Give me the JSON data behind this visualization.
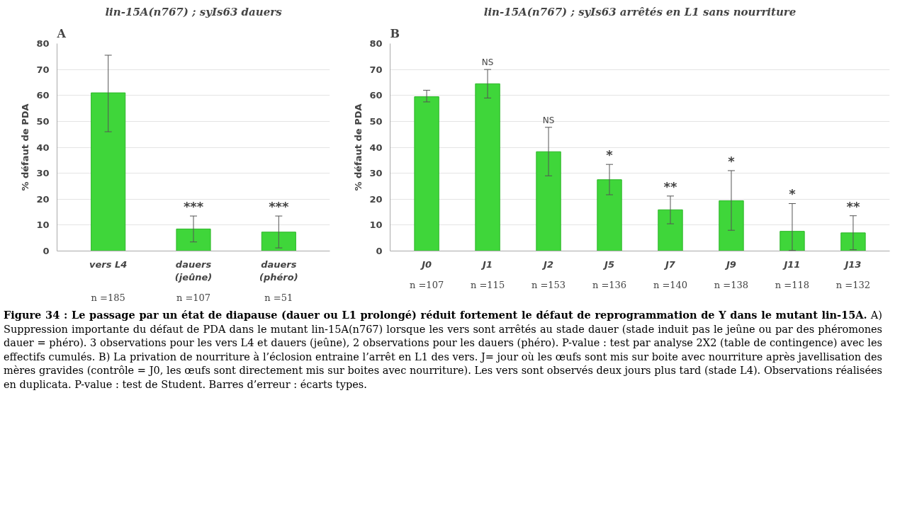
{
  "chart_data": [
    {
      "type": "bar",
      "title": "lin-15A(n767) ; syIs63 dauers",
      "ylabel": "% défaut de PDA",
      "categories": [
        "vers L4",
        "dauers\n(jeûne)",
        "dauers\n(phéro)"
      ],
      "values": [
        61,
        8.5,
        7.3
      ],
      "color": "#3fd63a",
      "errors": [
        [
          46,
          75.5
        ],
        [
          3.5,
          13.5
        ],
        [
          1.2,
          13.5
        ]
      ],
      "value_labels": [
        null,
        "***",
        "***"
      ],
      "ylim": [
        0,
        80
      ],
      "yticks": [
        0,
        10,
        20,
        30,
        40,
        50,
        60,
        70,
        80
      ],
      "grid": "y",
      "annotations": [
        {
          "text": "A"
        },
        "n =185",
        "n =107",
        "n =51"
      ]
    },
    {
      "type": "bar",
      "title": "lin-15A(n767) ; syIs63 arrêtés en L1 sans nourriture",
      "ylabel": "% défaut de PDA",
      "categories": [
        "J0",
        "J1",
        "J2",
        "J5",
        "J7",
        "J9",
        "J11",
        "J13"
      ],
      "values": [
        59.5,
        64.5,
        38.3,
        27.5,
        15.9,
        19.4,
        7.6,
        7
      ],
      "color": "#3fd63a",
      "errors": [
        [
          57.5,
          62
        ],
        [
          59,
          70
        ],
        [
          29,
          47.7
        ],
        [
          21.7,
          33.4
        ],
        [
          10.5,
          21.2
        ],
        [
          8,
          31
        ],
        [
          0.2,
          18.3
        ],
        [
          0.5,
          13.6
        ]
      ],
      "value_labels": [
        null,
        "NS",
        "NS",
        "*",
        "**",
        "*",
        "*",
        "**"
      ],
      "ylim": [
        0,
        80
      ],
      "yticks": [
        0,
        10,
        20,
        30,
        40,
        50,
        60,
        70,
        80
      ],
      "grid": "y",
      "annotations": [
        {
          "text": "B"
        },
        "n =107",
        "n =115",
        "n =153",
        "n =136",
        "n =140",
        "n =138",
        "n =118",
        "n =132",
        {
          "text": "Figure 34 : Le passage par un état de diapause (dauer ou L1 prolongé) réduit fortement le défaut de reprogrammation de Y dans le mutant lin-15A."
        },
        {
          "text": "A) Suppression importante du défaut de PDA dans le mutant lin-15A(n767) lorsque les vers sont arrêtés au stade dauer (stade induit pas le jeûne ou par des phéromones dauer = phéro). 3 observations pour les vers L4 et dauers (jeûne), 2 observations pour les dauers (phéro). P-value : test par analyse 2X2 (table de contingence) avec les effectifs cumulés. B) La privation de nourriture à l’éclosion entraine l’arrêt en L1 des vers. J= jour où les œufs sont mis sur boite avec nourriture après javellisation des mères gravides (contrôle = J0, les œufs sont directement mis sur boites avec nourriture). Les vers sont observés deux jours plus tard (stade L4). Observations réalisées en duplicata. P-value : test de Student. Barres d’erreur : écarts types."
        }
      ]
    }
  ]
}
